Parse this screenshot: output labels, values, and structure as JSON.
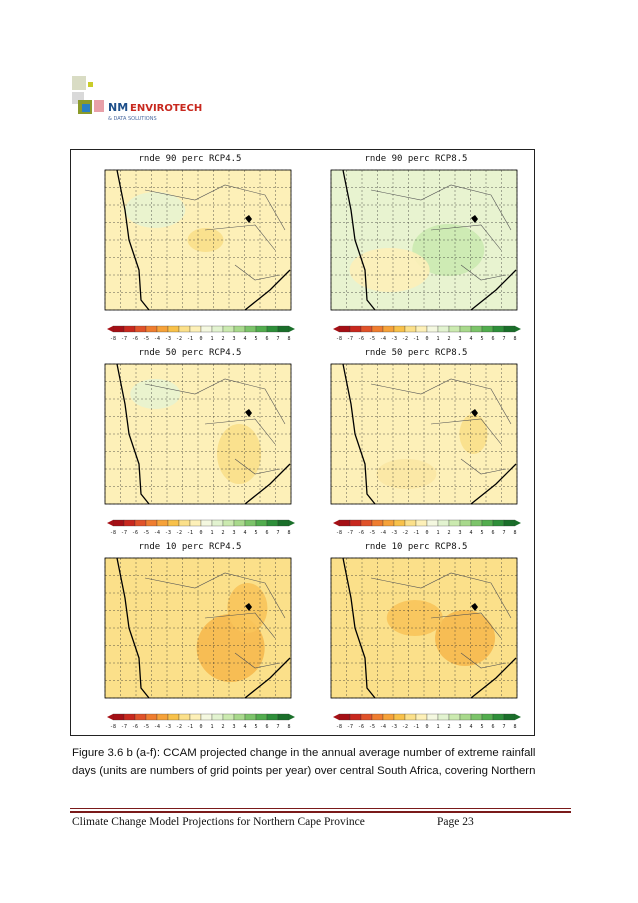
{
  "logo": {
    "text": "NM ENVIROTECH",
    "subtext": "& DATA SOLUTIONS"
  },
  "panels": [
    {
      "title": "rnde 90 perc RCP4.5"
    },
    {
      "title": "rnde 90 perc RCP8.5"
    },
    {
      "title": "rnde 50 perc RCP4.5"
    },
    {
      "title": "rnde 50 perc RCP8.5"
    },
    {
      "title": "rnde 10 perc RCP4.5"
    },
    {
      "title": "rnde 10 perc RCP8.5"
    }
  ],
  "colorbar": {
    "labels": [
      "-8",
      "-7",
      "-6",
      "-5",
      "-4",
      "-3",
      "-2",
      "-1",
      "0",
      "1",
      "2",
      "3",
      "4",
      "5",
      "6",
      "7",
      "8"
    ],
    "colors": [
      "#a50f15",
      "#c8281e",
      "#e0522a",
      "#ef7d30",
      "#f6a23a",
      "#f8c14a",
      "#fbe08a",
      "#fdf0b8",
      "#f4f8e0",
      "#e2f3d0",
      "#cbeab0",
      "#a8d98c",
      "#7cc46a",
      "#52ad4e",
      "#2e8f3a",
      "#1a6f2a"
    ]
  },
  "caption": {
    "line1": "Figure 3.6 b (a-f): CCAM projected change in the annual average number of extreme rainfall",
    "line2": "days (units are numbers of grid points per year) over central South Africa, covering Northern"
  },
  "footer": {
    "text": "Climate Change Model Projections for Northern Cape Province",
    "page": "Page 23"
  }
}
